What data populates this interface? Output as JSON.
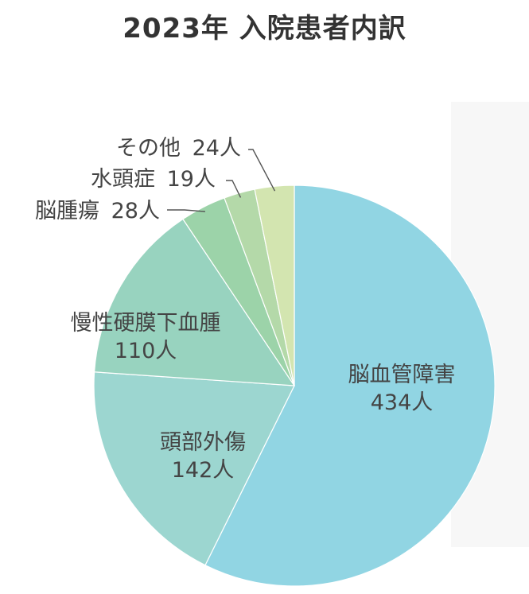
{
  "chart_data": {
    "type": "pie",
    "title": "2023年 入院患者内訳",
    "start": "top-clockwise",
    "slices": [
      {
        "label": "脳血管障害",
        "value": 434,
        "value_text": "434人",
        "color": "#91d5e3"
      },
      {
        "label": "頭部外傷",
        "value": 142,
        "value_text": "142人",
        "color": "#9cd6d0"
      },
      {
        "label": "慢性硬膜下血腫",
        "value": 110,
        "value_text": "110人",
        "color": "#98d3bf"
      },
      {
        "label": "脳腫瘍",
        "value": 28,
        "value_text": "28人",
        "color": "#9cd3a9"
      },
      {
        "label": "水頭症",
        "value": 19,
        "value_text": "19人",
        "color": "#b4d9a9"
      },
      {
        "label": "その他",
        "value": 24,
        "value_text": "24人",
        "color": "#d3e5b0"
      }
    ]
  }
}
